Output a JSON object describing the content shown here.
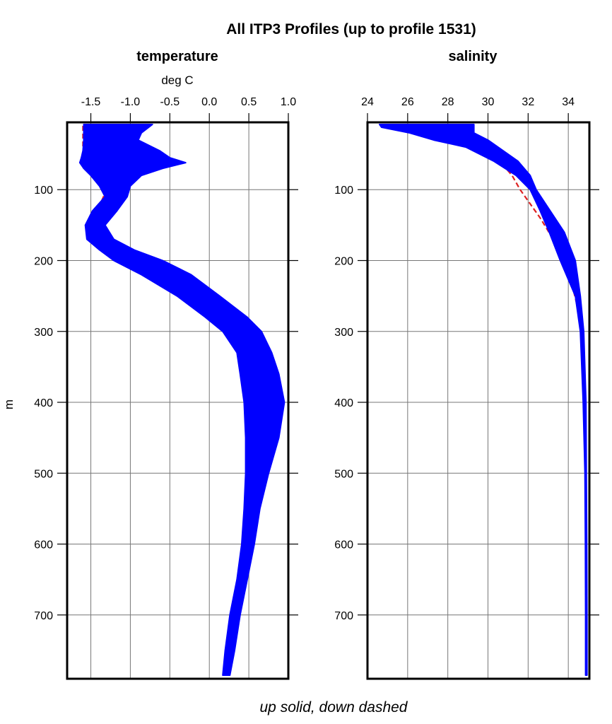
{
  "chart_data": {
    "type": "line",
    "title": "All ITP3 Profiles (up to profile 1531)",
    "ylabel": "m",
    "footer": "up solid, down dashed",
    "colors": {
      "up": "#0000ff",
      "down": "#dd2222"
    },
    "grid": true,
    "y_reversed": true,
    "ylim": [
      5,
      790
    ],
    "yticks": [
      100,
      200,
      300,
      400,
      500,
      600,
      700
    ],
    "panels": [
      {
        "title": "temperature",
        "xlabel": "deg C",
        "xlim": [
          -1.8,
          1.0
        ],
        "xticks": [
          -1.5,
          -1.0,
          -0.5,
          0.0,
          0.5,
          1.0
        ],
        "xtick_labels": [
          "-1.5",
          "-1.0",
          "-0.5",
          "0.0",
          "0.5",
          "1.0"
        ],
        "up_envelope": {
          "depth": [
            8,
            20,
            30,
            45,
            55,
            62,
            70,
            80,
            95,
            110,
            130,
            150,
            170,
            185,
            200,
            220,
            250,
            280,
            300,
            330,
            360,
            400,
            450,
            500,
            550,
            600,
            650,
            700,
            750,
            785
          ],
          "min": [
            -1.59,
            -1.59,
            -1.59,
            -1.6,
            -1.62,
            -1.64,
            -1.59,
            -1.5,
            -1.39,
            -1.32,
            -1.48,
            -1.57,
            -1.55,
            -1.39,
            -1.21,
            -0.86,
            -0.41,
            -0.05,
            0.17,
            0.35,
            0.39,
            0.44,
            0.46,
            0.46,
            0.44,
            0.41,
            0.35,
            0.26,
            0.2,
            0.17
          ],
          "max": [
            -0.72,
            -0.86,
            -0.9,
            -0.63,
            -0.5,
            -0.3,
            -0.59,
            -0.86,
            -1.0,
            -1.04,
            -1.17,
            -1.32,
            -1.21,
            -0.95,
            -0.59,
            -0.23,
            0.13,
            0.48,
            0.66,
            0.79,
            0.88,
            0.95,
            0.88,
            0.75,
            0.64,
            0.57,
            0.48,
            0.39,
            0.32,
            0.26
          ]
        },
        "down": {
          "depth": [
            10,
            40,
            62,
            100,
            150,
            200,
            250,
            300,
            350,
            400,
            450,
            500
          ],
          "value": [
            -1.6,
            -1.6,
            -1.55,
            -1.3,
            -1.5,
            -0.9,
            -0.1,
            0.6,
            0.45,
            0.5,
            0.7,
            0.6
          ]
        }
      },
      {
        "title": "salinity",
        "xlabel": "",
        "xlim": [
          24,
          35.05
        ],
        "xticks": [
          24,
          26,
          28,
          30,
          32,
          34
        ],
        "xtick_labels": [
          "24",
          "26",
          "28",
          "30",
          "32",
          "34"
        ],
        "up_envelope": {
          "depth": [
            8,
            12,
            20,
            30,
            40,
            60,
            80,
            100,
            130,
            160,
            200,
            250,
            300,
            400,
            500,
            600,
            700,
            785
          ],
          "min": [
            24.6,
            24.7,
            26.1,
            27.3,
            28.9,
            30.3,
            31.4,
            32.1,
            32.6,
            33.05,
            33.6,
            34.35,
            34.6,
            34.74,
            34.83,
            34.85,
            34.86,
            34.86
          ],
          "max": [
            29.3,
            29.3,
            29.3,
            30.0,
            30.5,
            31.5,
            32.1,
            32.4,
            33.1,
            33.8,
            34.35,
            34.6,
            34.77,
            34.88,
            34.9,
            34.92,
            34.93,
            34.93
          ]
        },
        "down": {
          "depth": [
            10,
            25,
            40,
            60,
            80,
            100,
            120,
            140,
            200,
            300,
            400,
            450
          ],
          "value": [
            27.0,
            27.5,
            29.2,
            30.6,
            31.2,
            31.6,
            32.1,
            32.6,
            33.9,
            34.75,
            34.8,
            34.82
          ]
        }
      }
    ]
  }
}
